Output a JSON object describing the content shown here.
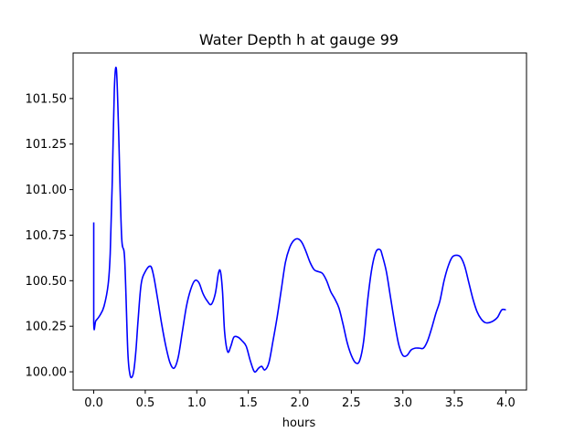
{
  "chart_data": {
    "type": "line",
    "title": "Water Depth h at gauge 99",
    "xlabel": "hours",
    "ylabel": "",
    "xlim": [
      -0.2,
      4.2
    ],
    "ylim": [
      99.9,
      101.75
    ],
    "x_ticks": [
      0.0,
      0.5,
      1.0,
      1.5,
      2.0,
      2.5,
      3.0,
      3.5,
      4.0
    ],
    "x_tick_labels": [
      "0.0",
      "0.5",
      "1.0",
      "1.5",
      "2.0",
      "2.5",
      "3.0",
      "3.5",
      "4.0"
    ],
    "y_ticks": [
      100.0,
      100.25,
      100.5,
      100.75,
      101.0,
      101.25,
      101.5
    ],
    "y_tick_labels": [
      "100.00",
      "100.25",
      "100.50",
      "100.75",
      "101.00",
      "101.25",
      "101.50"
    ],
    "grid": false,
    "series": [
      {
        "color": "#0000ff",
        "x": [
          0.0,
          0.0,
          0.02,
          0.06,
          0.1,
          0.14,
          0.16,
          0.18,
          0.2,
          0.22,
          0.24,
          0.27,
          0.3,
          0.33,
          0.35,
          0.37,
          0.39,
          0.41,
          0.43,
          0.46,
          0.5,
          0.55,
          0.58,
          0.62,
          0.66,
          0.7,
          0.74,
          0.78,
          0.82,
          0.86,
          0.9,
          0.94,
          0.98,
          1.02,
          1.06,
          1.1,
          1.14,
          1.18,
          1.21,
          1.23,
          1.25,
          1.27,
          1.3,
          1.33,
          1.36,
          1.4,
          1.44,
          1.48,
          1.52,
          1.56,
          1.6,
          1.63,
          1.66,
          1.7,
          1.74,
          1.78,
          1.82,
          1.86,
          1.9,
          1.94,
          1.98,
          2.02,
          2.06,
          2.1,
          2.14,
          2.18,
          2.22,
          2.26,
          2.3,
          2.34,
          2.38,
          2.42,
          2.46,
          2.5,
          2.54,
          2.58,
          2.62,
          2.66,
          2.7,
          2.74,
          2.78,
          2.8,
          2.84,
          2.88,
          2.92,
          2.96,
          3.0,
          3.04,
          3.08,
          3.12,
          3.16,
          3.2,
          3.24,
          3.28,
          3.32,
          3.36,
          3.4,
          3.44,
          3.48,
          3.52,
          3.56,
          3.6,
          3.64,
          3.68,
          3.72,
          3.76,
          3.8,
          3.84,
          3.88,
          3.92,
          3.96,
          4.0
        ],
        "y": [
          100.82,
          100.27,
          100.28,
          100.31,
          100.36,
          100.48,
          100.65,
          101.05,
          101.55,
          101.66,
          101.35,
          100.75,
          100.62,
          100.12,
          99.99,
          99.97,
          100.01,
          100.12,
          100.28,
          100.48,
          100.55,
          100.58,
          100.53,
          100.4,
          100.26,
          100.14,
          100.05,
          100.02,
          100.08,
          100.22,
          100.36,
          100.45,
          100.5,
          100.49,
          100.43,
          100.39,
          100.37,
          100.43,
          100.54,
          100.55,
          100.44,
          100.22,
          100.11,
          100.14,
          100.19,
          100.19,
          100.17,
          100.14,
          100.06,
          100.0,
          100.02,
          100.03,
          100.01,
          100.05,
          100.17,
          100.3,
          100.45,
          100.6,
          100.68,
          100.72,
          100.73,
          100.71,
          100.66,
          100.6,
          100.56,
          100.55,
          100.54,
          100.5,
          100.44,
          100.4,
          100.35,
          100.26,
          100.16,
          100.09,
          100.05,
          100.06,
          100.17,
          100.4,
          100.57,
          100.66,
          100.67,
          100.64,
          100.55,
          100.41,
          100.27,
          100.15,
          100.09,
          100.09,
          100.12,
          100.13,
          100.13,
          100.13,
          100.17,
          100.24,
          100.32,
          100.39,
          100.5,
          100.58,
          100.63,
          100.64,
          100.63,
          100.58,
          100.49,
          100.4,
          100.33,
          100.29,
          100.27,
          100.27,
          100.28,
          100.3,
          100.34,
          100.34
        ]
      }
    ]
  }
}
